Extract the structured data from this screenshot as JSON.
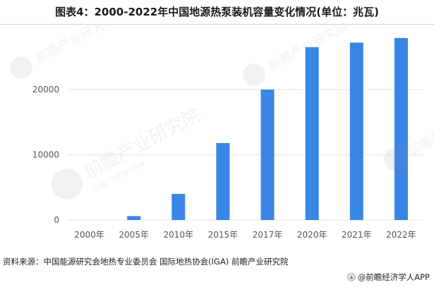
{
  "title": "图表4：2000-2022年中国地源热泵装机容量变化情况(单位：兆瓦)",
  "source": "资料来源：中国能源研究会地热专业委员会 国际地热协会(IGA) 前瞻产业研究院",
  "brand": "@前瞻经济学人APP",
  "watermark": {
    "name": "前瞻产业研究院",
    "sub": "中国产业咨询领导者"
  },
  "colors": {
    "bar": "#3a86e6",
    "grid": "#e6e6e6",
    "tick_text": "#555555"
  },
  "chart_data": {
    "type": "bar",
    "categories": [
      "2000年",
      "2005年",
      "2010年",
      "2015年",
      "2017年",
      "2020年",
      "2021年",
      "2022年"
    ],
    "values": [
      0,
      600,
      4000,
      11800,
      20000,
      26500,
      27200,
      27900
    ],
    "ylim": [
      0,
      28000
    ],
    "yticks": [
      0,
      10000,
      20000
    ],
    "grid": true
  }
}
